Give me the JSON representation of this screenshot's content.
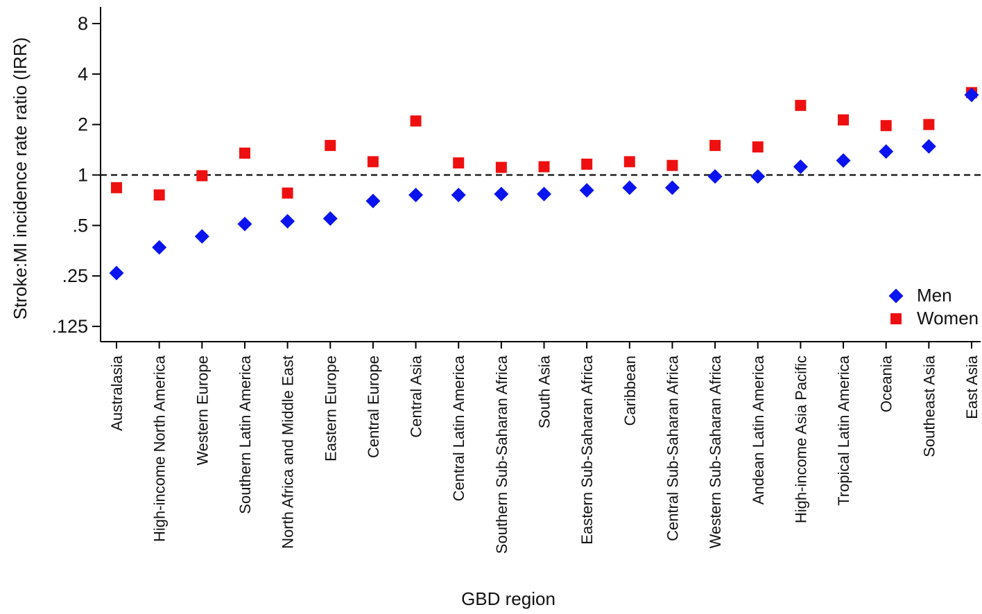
{
  "chart_data": {
    "type": "scatter",
    "xlabel": "GBD region",
    "ylabel": "Stroke:MI incidence rate ratio (IRR)",
    "y_scale": "log2",
    "ylim": [
      0.1,
      10
    ],
    "yticks": [
      0.125,
      0.25,
      0.5,
      1,
      2,
      4,
      8
    ],
    "ytick_labels": [
      ".125",
      ".25",
      ".5",
      "1",
      "2",
      "4",
      "8"
    ],
    "reference_line": {
      "y": 1,
      "style": "dashed"
    },
    "legend_position": "bottom-right",
    "categories": [
      "Australasia",
      "High-income North America",
      "Western Europe",
      "Southern Latin America",
      "North Africa and Middle East",
      "Eastern Europe",
      "Central Europe",
      "Central Asia",
      "Central Latin America",
      "Southern Sub-Saharan Africa",
      "South Asia",
      "Eastern Sub-Saharan Africa",
      "Caribbean",
      "Central Sub-Saharan Africa",
      "Western Sub-Saharan Africa",
      "Andean Latin America",
      "High-income Asia Pacific",
      "Tropical Latin America",
      "Oceania",
      "Southeast Asia",
      "East Asia"
    ],
    "series": [
      {
        "name": "Men",
        "marker": "diamond",
        "color": "#0a14ee",
        "values": [
          0.26,
          0.37,
          0.43,
          0.51,
          0.53,
          0.55,
          0.7,
          0.76,
          0.76,
          0.77,
          0.77,
          0.81,
          0.84,
          0.84,
          0.98,
          0.98,
          1.12,
          1.22,
          1.38,
          1.48,
          3.0
        ]
      },
      {
        "name": "Women",
        "marker": "square",
        "color": "#ee1010",
        "values": [
          0.84,
          0.76,
          0.99,
          1.35,
          0.78,
          1.5,
          1.2,
          2.1,
          1.18,
          1.11,
          1.12,
          1.16,
          1.2,
          1.14,
          1.5,
          1.47,
          2.6,
          2.13,
          1.97,
          2.0,
          3.1
        ]
      }
    ]
  }
}
